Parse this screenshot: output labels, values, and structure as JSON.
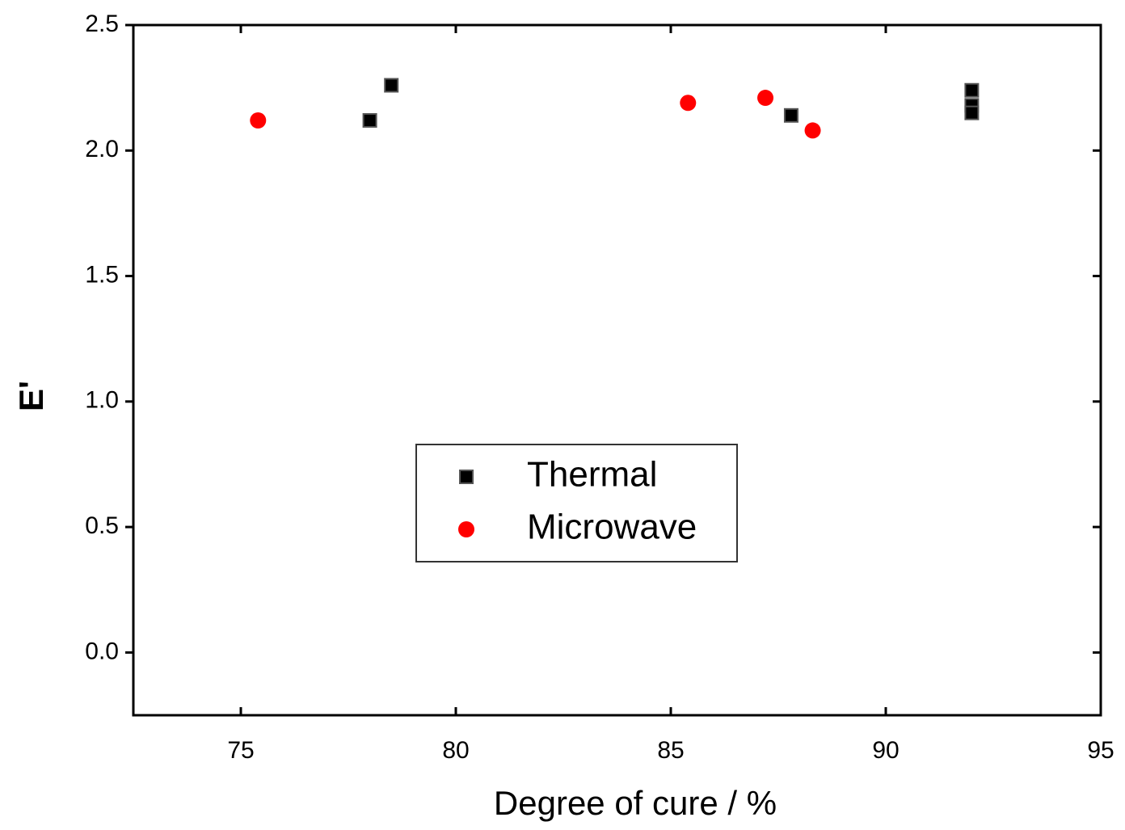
{
  "chart_data": {
    "type": "scatter",
    "xlabel": "Degree of cure / %",
    "ylabel": "E'",
    "xlim": [
      72.5,
      95
    ],
    "ylim": [
      -0.25,
      2.5
    ],
    "xticks": [
      75,
      80,
      85,
      90,
      95
    ],
    "yticks": [
      {
        "value": 0,
        "label": "0.0"
      },
      0.5,
      {
        "value": 1,
        "label": "1.0"
      },
      1.5,
      {
        "value": 2,
        "label": "2.0"
      },
      2.5
    ],
    "legend": "center",
    "series": [
      {
        "name": "Thermal",
        "color": "#000000",
        "marker": "square",
        "x": [
          78.0,
          78.5,
          87.8,
          92.0,
          92.0,
          92.0
        ],
        "values": [
          2.12,
          2.26,
          2.14,
          2.24,
          2.18,
          2.15
        ]
      },
      {
        "name": "Microwave",
        "color": "#ff0000",
        "marker": "circle",
        "x": [
          75.4,
          85.4,
          87.2,
          88.3
        ],
        "values": [
          2.12,
          2.19,
          2.21,
          2.08
        ]
      }
    ]
  }
}
